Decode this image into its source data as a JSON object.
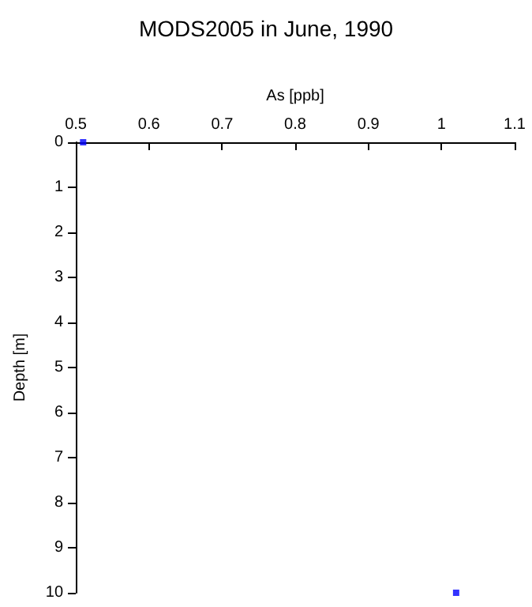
{
  "chart_data": {
    "type": "scatter",
    "title": "MODS2005 in June, 1990",
    "xlabel": "As [ppb]",
    "ylabel": "Depth [m]",
    "x": [
      0.51,
      1.02
    ],
    "series": [
      {
        "color": "#0000ff",
        "values": [
          0,
          10
        ]
      }
    ],
    "xlim": [
      0.5,
      1.1
    ],
    "xticks": [
      0.5,
      0.6,
      0.7,
      0.8,
      0.9,
      1,
      1.1
    ],
    "ylim": [
      10,
      0
    ],
    "yticks": [
      0,
      1,
      2,
      3,
      4,
      5,
      6,
      7,
      8,
      9,
      10
    ],
    "marker": "square",
    "grid": false
  }
}
